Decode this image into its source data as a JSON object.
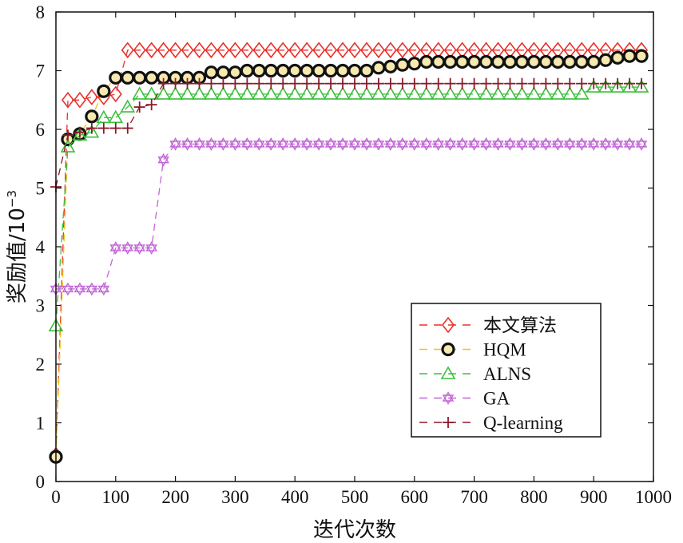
{
  "chart_data": {
    "type": "line",
    "xlabel": "迭代次数",
    "ylabel": "奖励值/10",
    "ylabel_exp": "−3",
    "xlim": [
      0,
      1000
    ],
    "ylim": [
      0,
      8
    ],
    "xticks": [
      0,
      100,
      200,
      300,
      400,
      500,
      600,
      700,
      800,
      900,
      1000
    ],
    "yticks": [
      0,
      1,
      2,
      3,
      4,
      5,
      6,
      7,
      8
    ],
    "grid": false,
    "legend_position": "bottom-right",
    "series": [
      {
        "name": "本文算法",
        "color": "#e8302a",
        "marker": "diamond",
        "x": [
          0,
          20,
          40,
          60,
          80,
          100,
          120,
          140,
          160,
          180,
          200,
          220,
          240,
          260,
          280,
          300,
          320,
          340,
          360,
          380,
          400,
          420,
          440,
          460,
          480,
          500,
          520,
          540,
          560,
          580,
          600,
          620,
          640,
          660,
          680,
          700,
          720,
          740,
          760,
          780,
          800,
          820,
          840,
          860,
          880,
          900,
          920,
          940,
          960,
          980
        ],
        "y": [
          0.45,
          6.5,
          6.5,
          6.55,
          6.55,
          6.6,
          7.35,
          7.35,
          7.35,
          7.35,
          7.35,
          7.35,
          7.35,
          7.35,
          7.35,
          7.35,
          7.35,
          7.35,
          7.35,
          7.35,
          7.35,
          7.35,
          7.35,
          7.35,
          7.35,
          7.35,
          7.35,
          7.35,
          7.35,
          7.35,
          7.35,
          7.35,
          7.35,
          7.35,
          7.35,
          7.35,
          7.35,
          7.35,
          7.35,
          7.35,
          7.35,
          7.35,
          7.35,
          7.35,
          7.35,
          7.35,
          7.35,
          7.35,
          7.35,
          7.35
        ]
      },
      {
        "name": "HQM",
        "color": "#f0c419",
        "marker": "circle",
        "x": [
          0,
          20,
          40,
          60,
          80,
          100,
          120,
          140,
          160,
          180,
          200,
          220,
          240,
          260,
          280,
          300,
          320,
          340,
          360,
          380,
          400,
          420,
          440,
          460,
          480,
          500,
          520,
          540,
          560,
          580,
          600,
          620,
          640,
          660,
          680,
          700,
          720,
          740,
          760,
          780,
          800,
          820,
          840,
          860,
          880,
          900,
          920,
          940,
          960,
          980
        ],
        "y": [
          0.42,
          5.83,
          5.92,
          6.22,
          6.65,
          6.88,
          6.88,
          6.88,
          6.88,
          6.88,
          6.88,
          6.88,
          6.88,
          6.97,
          6.97,
          6.97,
          7.0,
          7.0,
          7.0,
          7.0,
          7.0,
          7.0,
          7.0,
          7.0,
          7.0,
          7.0,
          7.0,
          7.05,
          7.07,
          7.1,
          7.12,
          7.15,
          7.15,
          7.15,
          7.15,
          7.15,
          7.15,
          7.15,
          7.15,
          7.15,
          7.15,
          7.15,
          7.15,
          7.15,
          7.15,
          7.15,
          7.18,
          7.22,
          7.25,
          7.25
        ]
      },
      {
        "name": "ALNS",
        "color": "#3bbf3b",
        "marker": "triangle",
        "x": [
          0,
          20,
          40,
          60,
          80,
          100,
          120,
          140,
          160,
          180,
          200,
          220,
          240,
          260,
          280,
          300,
          320,
          340,
          360,
          380,
          400,
          420,
          440,
          460,
          480,
          500,
          520,
          540,
          560,
          580,
          600,
          620,
          640,
          660,
          680,
          700,
          720,
          740,
          760,
          780,
          800,
          820,
          840,
          860,
          880,
          900,
          920,
          940,
          960,
          980
        ],
        "y": [
          2.65,
          5.7,
          5.9,
          5.95,
          6.2,
          6.2,
          6.38,
          6.6,
          6.6,
          6.6,
          6.6,
          6.6,
          6.6,
          6.6,
          6.6,
          6.6,
          6.6,
          6.6,
          6.6,
          6.6,
          6.6,
          6.6,
          6.6,
          6.6,
          6.6,
          6.6,
          6.6,
          6.6,
          6.6,
          6.6,
          6.6,
          6.6,
          6.6,
          6.6,
          6.6,
          6.6,
          6.6,
          6.6,
          6.6,
          6.6,
          6.6,
          6.6,
          6.6,
          6.6,
          6.6,
          6.72,
          6.72,
          6.72,
          6.72,
          6.72
        ]
      },
      {
        "name": "GA",
        "color": "#c266d6",
        "marker": "hexagram",
        "x": [
          0,
          20,
          40,
          60,
          80,
          100,
          120,
          140,
          160,
          180,
          200,
          220,
          240,
          260,
          280,
          300,
          320,
          340,
          360,
          380,
          400,
          420,
          440,
          460,
          480,
          500,
          520,
          540,
          560,
          580,
          600,
          620,
          640,
          660,
          680,
          700,
          720,
          740,
          760,
          780,
          800,
          820,
          840,
          860,
          880,
          900,
          920,
          940,
          960,
          980
        ],
        "y": [
          3.28,
          3.28,
          3.28,
          3.28,
          3.28,
          3.98,
          3.98,
          3.98,
          3.98,
          5.48,
          5.75,
          5.75,
          5.75,
          5.75,
          5.75,
          5.75,
          5.75,
          5.75,
          5.75,
          5.75,
          5.75,
          5.75,
          5.75,
          5.75,
          5.75,
          5.75,
          5.75,
          5.75,
          5.75,
          5.75,
          5.75,
          5.75,
          5.75,
          5.75,
          5.75,
          5.75,
          5.75,
          5.75,
          5.75,
          5.75,
          5.75,
          5.75,
          5.75,
          5.75,
          5.75,
          5.75,
          5.75,
          5.75,
          5.75,
          5.75
        ]
      },
      {
        "name": "Q-learning",
        "color": "#8b1a2b",
        "marker": "plus",
        "x": [
          0,
          20,
          40,
          60,
          80,
          100,
          120,
          140,
          160,
          180,
          200,
          220,
          240,
          260,
          280,
          300,
          320,
          340,
          360,
          380,
          400,
          420,
          440,
          460,
          480,
          500,
          520,
          540,
          560,
          580,
          600,
          620,
          640,
          660,
          680,
          700,
          720,
          740,
          760,
          780,
          800,
          820,
          840,
          860,
          880,
          900,
          920,
          940,
          960,
          980
        ],
        "y": [
          5.02,
          5.9,
          5.95,
          6.02,
          6.02,
          6.02,
          6.02,
          6.38,
          6.42,
          6.78,
          6.78,
          6.78,
          6.78,
          6.78,
          6.78,
          6.78,
          6.78,
          6.78,
          6.78,
          6.78,
          6.78,
          6.78,
          6.78,
          6.78,
          6.78,
          6.78,
          6.78,
          6.78,
          6.78,
          6.78,
          6.78,
          6.78,
          6.78,
          6.78,
          6.78,
          6.78,
          6.78,
          6.78,
          6.78,
          6.78,
          6.78,
          6.78,
          6.78,
          6.78,
          6.78,
          6.78,
          6.78,
          6.78,
          6.78,
          6.78
        ]
      }
    ]
  }
}
